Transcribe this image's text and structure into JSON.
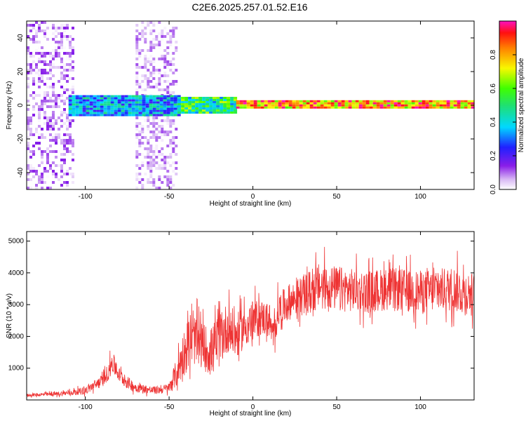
{
  "title": "C2E6.2025.257.01.52.E16",
  "colors": {
    "snr_line": "#ee3333",
    "frame": "#000000"
  },
  "chart_data": [
    {
      "type": "heatmap",
      "xlabel": "Height of straight line (km)",
      "ylabel": "Frequency (Hz)",
      "xlim": [
        -135,
        132
      ],
      "ylim": [
        -50,
        50
      ],
      "xticks": [
        -100,
        -50,
        0,
        50,
        100
      ],
      "yticks": [
        -40,
        -20,
        0,
        20,
        40
      ],
      "colorbar": {
        "label": "Normalized spectral amplitude",
        "range": [
          0,
          1
        ],
        "ticks": [
          "0.0",
          "0.2",
          "0.4",
          "0.6",
          "0.8"
        ],
        "colormap": "rainbow (white-purple-blue-cyan-green-yellow-orange-red-magenta)"
      },
      "features": [
        {
          "x_range": [
            -135,
            -107
          ],
          "freq_range": [
            -50,
            50
          ],
          "amplitude": [
            0.0,
            0.15
          ],
          "note": "broadband noise"
        },
        {
          "x_range": [
            -70,
            -46
          ],
          "freq_range": [
            -50,
            50
          ],
          "amplitude": [
            0.0,
            0.12
          ],
          "note": "broadband noise"
        },
        {
          "x_range": [
            -110,
            -45
          ],
          "freq_range": [
            -6,
            6
          ],
          "amplitude": [
            0.2,
            0.5
          ],
          "note": "band near 0 Hz"
        },
        {
          "x_range": [
            -45,
            -10
          ],
          "freq_range": [
            -4,
            5
          ],
          "amplitude": [
            0.3,
            0.7
          ],
          "note": "band near 0 Hz"
        },
        {
          "x_range": [
            -10,
            132
          ],
          "freq_range": [
            -2,
            3
          ],
          "amplitude": [
            0.6,
            1.0
          ],
          "note": "strong line at ~0 Hz"
        }
      ]
    },
    {
      "type": "line",
      "xlabel": "Height of straight line (km)",
      "ylabel": "SNR (10 * v/v)",
      "xlim": [
        -135,
        132
      ],
      "ylim": [
        0,
        5300
      ],
      "xticks": [
        -100,
        -50,
        0,
        50,
        100
      ],
      "yticks": [
        1000,
        2000,
        3000,
        4000,
        5000
      ],
      "series": [
        {
          "x": [
            -135,
            -120,
            -110,
            -100,
            -95,
            -90,
            -86,
            -84,
            -80,
            -75,
            -70,
            -60,
            -55,
            -50,
            -48,
            -45,
            -42,
            -38,
            -35,
            -30,
            -25,
            -20,
            -15,
            -10,
            -5,
            0,
            5,
            10,
            12,
            15,
            20,
            25,
            30,
            35,
            40,
            50,
            60,
            70,
            80,
            90,
            100,
            110,
            120,
            125,
            132
          ],
          "y": [
            150,
            180,
            220,
            300,
            450,
            600,
            900,
            1200,
            800,
            550,
            400,
            300,
            320,
            380,
            600,
            900,
            1400,
            1800,
            1900,
            1700,
            1500,
            1900,
            2300,
            2000,
            2300,
            2500,
            2600,
            2500,
            1900,
            2800,
            3000,
            3200,
            3300,
            3400,
            3600,
            3500,
            3450,
            3400,
            3500,
            3450,
            3400,
            3450,
            3500,
            3400,
            3350
          ],
          "spread": [
            60,
            80,
            100,
            150,
            200,
            250,
            350,
            450,
            300,
            250,
            200,
            150,
            160,
            200,
            400,
            600,
            900,
            1000,
            1000,
            900,
            1000,
            1100,
            1000,
            900,
            800,
            800,
            700,
            700,
            600,
            700,
            700,
            700,
            800,
            900,
            900,
            900,
            850,
            850,
            850,
            850,
            850,
            850,
            900,
            900,
            800
          ]
        }
      ]
    }
  ]
}
